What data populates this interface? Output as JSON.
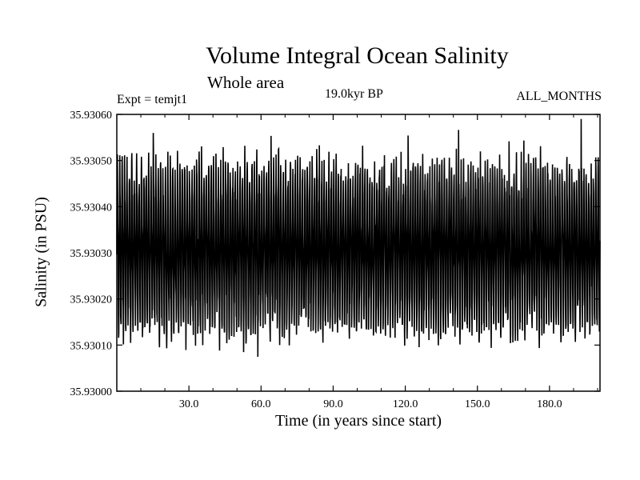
{
  "chart_data": {
    "type": "line",
    "title": "Volume Integral Ocean Salinity",
    "subtitle": "Whole area",
    "annotations": {
      "experiment": "Expt = temjt1",
      "period": "19.0kyr BP",
      "months": "ALL_MONTHS"
    },
    "xlabel": "Time (in years since start)",
    "ylabel": "Salinity (in PSU)",
    "xlim": [
      0,
      201
    ],
    "ylim": [
      35.93,
      35.9306
    ],
    "x_ticks": [
      30.0,
      60.0,
      90.0,
      120.0,
      150.0,
      180.0
    ],
    "x_tick_labels": [
      "30.0",
      "60.0",
      "90.0",
      "120.0",
      "150.0",
      "180.0"
    ],
    "y_ticks": [
      35.93,
      35.9301,
      35.9302,
      35.9303,
      35.9304,
      35.9305,
      35.9306
    ],
    "y_tick_labels": [
      "35.93000",
      "35.93010",
      "35.93020",
      "35.93030",
      "35.93040",
      "35.93050",
      "35.93060"
    ],
    "series": [
      {
        "name": "Salinity",
        "x_start": 0,
        "x_end": 201,
        "samples_per_year": 12,
        "mean": 35.93031,
        "typical_max": 35.93052,
        "typical_min": 35.93012,
        "max": 35.93059,
        "min": 35.93005,
        "color": "#000000"
      }
    ]
  }
}
